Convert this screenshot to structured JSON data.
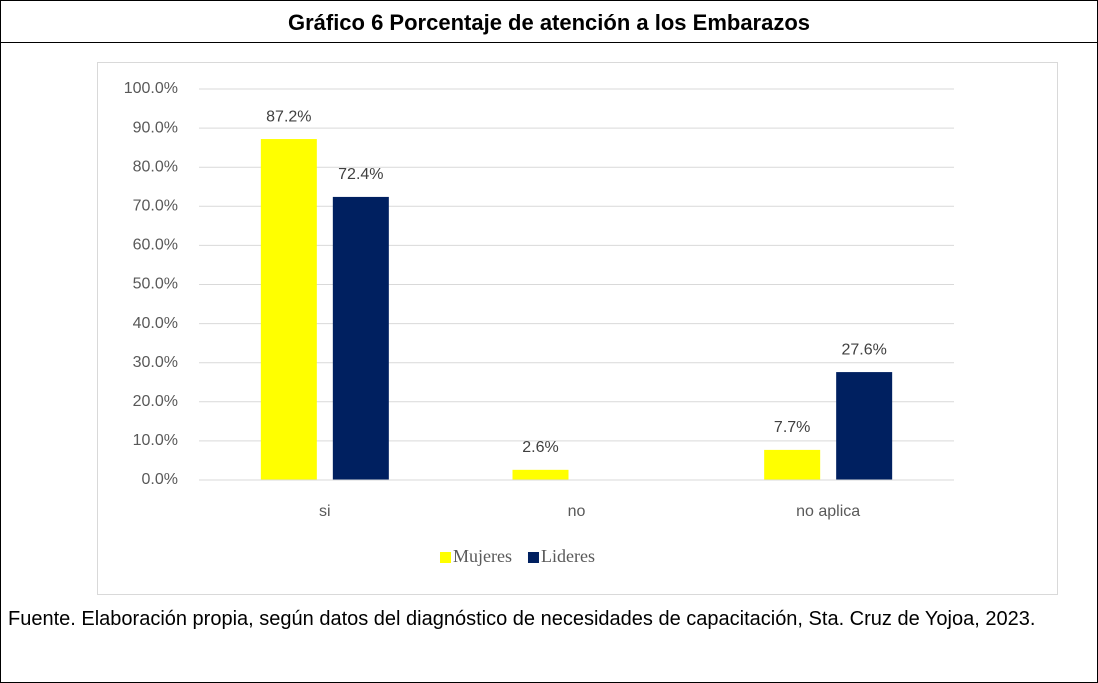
{
  "chart_data": {
    "type": "bar",
    "title": "Gráfico 6 Porcentaje de atención a los Embarazos",
    "categories": [
      "si",
      "no",
      "no aplica"
    ],
    "series": [
      {
        "name": "Mujeres",
        "color": "#ffff00",
        "values": [
          87.2,
          2.6,
          7.7
        ],
        "value_labels": [
          "87.2%",
          "2.6%",
          "7.7%"
        ]
      },
      {
        "name": "Lideres",
        "color": "#002060",
        "values": [
          72.4,
          null,
          27.6
        ],
        "value_labels": [
          "72.4%",
          null,
          "27.6%"
        ]
      }
    ],
    "ylim": [
      0,
      100
    ],
    "yticks": [
      {
        "value": 0,
        "label": "0.0%"
      },
      {
        "value": 10,
        "label": "10.0%"
      },
      {
        "value": 20,
        "label": "20.0%"
      },
      {
        "value": 30,
        "label": "30.0%"
      },
      {
        "value": 40,
        "label": "40.0%"
      },
      {
        "value": 50,
        "label": "50.0%"
      },
      {
        "value": 60,
        "label": "60.0%"
      },
      {
        "value": 70,
        "label": "70.0%"
      },
      {
        "value": 80,
        "label": "80.0%"
      },
      {
        "value": 90,
        "label": "90.0%"
      },
      {
        "value": 100,
        "label": "100.0%"
      }
    ],
    "grid": true,
    "legend": "bottom"
  },
  "source": "Fuente. Elaboración propia, según datos del diagnóstico de necesidades de capacitación, Sta. Cruz de Yojoa, 2023."
}
